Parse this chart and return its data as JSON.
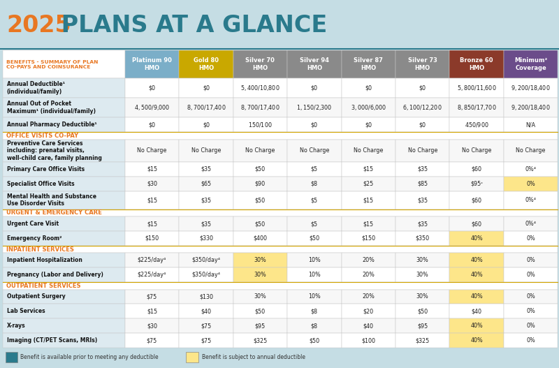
{
  "title_year": "2025",
  "title_rest": " PLANS AT A GLANCE",
  "header_bg": "#c5dde4",
  "header_text_color": "#2a7a8c",
  "year_color": "#e87722",
  "col_headers": [
    "Platinum 90\nHMO",
    "Gold 80\nHMO",
    "Silver 70\nHMO",
    "Silver 94\nHMO",
    "Silver 87\nHMO",
    "Silver 73\nHMO",
    "Bronze 60\nHMO",
    "Minimum²\nCoverage"
  ],
  "col_colors": [
    "#7baec8",
    "#c9a800",
    "#8a8a8a",
    "#8a8a8a",
    "#8a8a8a",
    "#8a8a8a",
    "#8b3a2a",
    "#6b4c8a"
  ],
  "section_label_color": "#e87722",
  "row_label_bg": "#ddeaf0",
  "highlight_yellow": "#fde68a",
  "highlight_orange": "#f5c842",
  "sections": [
    {
      "name": "",
      "is_section_header": false,
      "rows": [
        {
          "label": "Annual Deductible¹\n(individual/family)",
          "values": [
            "$0",
            "$0",
            "$5,400/$10,800",
            "$0",
            "$0",
            "$0",
            "$5,800/$11,600",
            "$9,200/$18,400"
          ],
          "bold_label": true,
          "highlight_cols": []
        },
        {
          "label": "Annual Out of Pocket\nMaximum¹ (individual/family)",
          "values": [
            "$4,500/$9,000",
            "$8,700/$17,400",
            "$8,700/$17,400",
            "$1,150/$2,300",
            "$3,000/$6,000",
            "$6,100/$12,200",
            "$8,850/$17,700",
            "$9,200/$18,400"
          ],
          "bold_label": true,
          "highlight_cols": []
        },
        {
          "label": "Annual Pharmacy Deductible¹",
          "values": [
            "$0",
            "$0",
            "$150/$100",
            "$0",
            "$0",
            "$0",
            "$450/$900",
            "N/A"
          ],
          "bold_label": true,
          "highlight_cols": []
        }
      ]
    },
    {
      "name": "OFFICE VISITS CO-PAY",
      "is_section_header": true,
      "rows": [
        {
          "label": "Preventive Care Services\nincluding: prenatal visits,\nwell-child care, family planning",
          "values": [
            "No Charge",
            "No Charge",
            "No Charge",
            "No Charge",
            "No Charge",
            "No Charge",
            "No Charge",
            "No Charge"
          ],
          "bold_label": true,
          "bold_label_sub": false,
          "highlight_cols": []
        },
        {
          "label": "Primary Care Office Visits",
          "values": [
            "$15",
            "$35",
            "$50",
            "$5",
            "$15",
            "$35",
            "$60",
            "0%⁴"
          ],
          "bold_label": true,
          "highlight_cols": []
        },
        {
          "label": "Specialist Office Visits",
          "values": [
            "$30",
            "$65",
            "$90",
            "$8",
            "$25",
            "$85",
            "$95ᶜ",
            "0%"
          ],
          "bold_label": true,
          "highlight_cols": [
            7
          ]
        },
        {
          "label": "Mental Health and Substance\nUse Disorder Visits",
          "values": [
            "$15",
            "$35",
            "$50",
            "$5",
            "$15",
            "$35",
            "$60",
            "0%⁴"
          ],
          "bold_label": true,
          "highlight_cols": []
        }
      ]
    },
    {
      "name": "URGENT & EMERGENCY CARE",
      "is_section_header": true,
      "rows": [
        {
          "label": "Urgent Care Visit",
          "values": [
            "$15",
            "$35",
            "$50",
            "$5",
            "$15",
            "$35",
            "$60",
            "0%⁴"
          ],
          "bold_label": true,
          "highlight_cols": []
        },
        {
          "label": "Emergency Room²",
          "values": [
            "$150",
            "$330",
            "$400",
            "$50",
            "$150",
            "$350",
            "40%",
            "0%"
          ],
          "bold_label": true,
          "highlight_cols": [
            6
          ]
        }
      ]
    },
    {
      "name": "INPATIENT SERVICES",
      "is_section_header": true,
      "rows": [
        {
          "label": "Inpatient Hospitalization",
          "values": [
            "$225/day⁴",
            "$350/day⁴",
            "30%",
            "10%",
            "20%",
            "30%",
            "40%",
            "0%"
          ],
          "bold_label": true,
          "highlight_cols": [
            2,
            6
          ]
        },
        {
          "label": "Pregnancy (Labor and Delivery)",
          "values": [
            "$225/day⁴",
            "$350/day⁴",
            "30%",
            "10%",
            "20%",
            "30%",
            "40%",
            "0%"
          ],
          "bold_label": true,
          "highlight_cols": [
            2,
            6
          ]
        }
      ]
    },
    {
      "name": "OUTPATIENT SERVICES",
      "is_section_header": true,
      "rows": [
        {
          "label": "Outpatient Surgery",
          "values": [
            "$75",
            "$130",
            "30%",
            "10%",
            "20%",
            "30%",
            "40%",
            "0%"
          ],
          "bold_label": true,
          "highlight_cols": [
            6
          ]
        },
        {
          "label": "Lab Services",
          "values": [
            "$15",
            "$40",
            "$50",
            "$8",
            "$20",
            "$50",
            "$40",
            "0%"
          ],
          "bold_label": true,
          "highlight_cols": []
        },
        {
          "label": "X-rays",
          "values": [
            "$30",
            "$75",
            "$95",
            "$8",
            "$40",
            "$95",
            "40%",
            "0%"
          ],
          "bold_label": true,
          "highlight_cols": [
            6
          ]
        },
        {
          "label": "Imaging (CT/PET Scans, MRIs)",
          "values": [
            "$75",
            "$75",
            "$325",
            "$50",
            "$100",
            "$325",
            "40%",
            "0%"
          ],
          "bold_label": true,
          "highlight_cols": [
            6
          ]
        }
      ]
    }
  ],
  "footer_text1": "Benefit is available prior to meeting any deductible",
  "footer_text2": "Benefit is subject to annual deductible"
}
